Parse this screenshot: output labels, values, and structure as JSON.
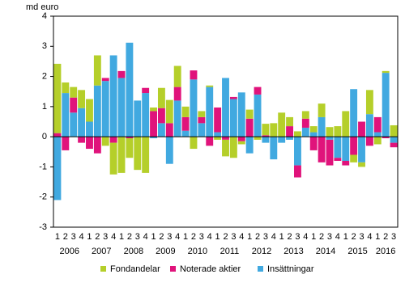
{
  "chart_data": {
    "type": "stacked_bar",
    "y_label": "md euro",
    "categories": [
      "1",
      "2",
      "3",
      "4",
      "1",
      "2",
      "3",
      "4",
      "1",
      "2",
      "3",
      "4",
      "1",
      "2",
      "3",
      "4",
      "1",
      "2",
      "3",
      "4",
      "1",
      "2",
      "3",
      "4",
      "1",
      "2",
      "3",
      "4",
      "1",
      "2",
      "3",
      "4",
      "1",
      "2",
      "3",
      "4",
      "1",
      "2",
      "3",
      "4",
      "1",
      "2",
      "3"
    ],
    "year_labels": [
      "2006",
      "2007",
      "2008",
      "2009",
      "2010",
      "2011",
      "2012",
      "2013",
      "2014",
      "2015",
      "2016"
    ],
    "series": [
      {
        "name": "Insättningar",
        "color": "#41a9e0",
        "values": [
          -2.1,
          1.45,
          0.8,
          0.95,
          0.5,
          1.7,
          1.85,
          2.7,
          1.95,
          3.12,
          1.2,
          1.45,
          -0.05,
          0.45,
          -0.9,
          1.2,
          0.2,
          1.9,
          0.45,
          1.65,
          0.15,
          1.95,
          1.25,
          1.47,
          -0.55,
          1.4,
          -0.2,
          -0.75,
          -0.2,
          -0.1,
          -0.95,
          0.3,
          0.15,
          0.65,
          -0.1,
          -0.7,
          -0.8,
          1.58,
          -0.85,
          0.75,
          0.15,
          2.12,
          -0.2
        ]
      },
      {
        "name": "Noterade aktier",
        "color": "#e0137b",
        "values": [
          0.12,
          -0.45,
          0.5,
          -0.2,
          -0.4,
          -0.55,
          0.1,
          -0.2,
          0.23,
          -0.05,
          0,
          0.17,
          0.85,
          0.5,
          0.45,
          0.45,
          0.45,
          0.3,
          0.2,
          -0.3,
          0.82,
          -0.1,
          0.07,
          -0.15,
          0.6,
          0.25,
          0.05,
          0,
          0,
          0.35,
          -0.4,
          0.3,
          -0.45,
          -0.85,
          -0.85,
          -0.1,
          -0.15,
          -0.6,
          0.5,
          -0.3,
          0.5,
          -0.05,
          -0.15
        ]
      },
      {
        "name": "Fondandelar",
        "color": "#b5cf2a",
        "values": [
          2.3,
          0.35,
          0.35,
          0.6,
          0.75,
          1.0,
          -0.3,
          -1.05,
          -1.2,
          -0.65,
          -1.1,
          -1.2,
          0.12,
          0.67,
          0.77,
          0.7,
          0.35,
          -0.4,
          0.2,
          0.05,
          -0.1,
          -0.55,
          -0.7,
          -0.1,
          0.3,
          -0.1,
          0.38,
          0.45,
          0.8,
          0.3,
          0.18,
          0.25,
          0.2,
          0.45,
          0.32,
          0.35,
          0.85,
          -0.25,
          -0.15,
          0.8,
          -0.25,
          0.06,
          0.38
        ]
      }
    ],
    "ylim": [
      -3,
      4
    ],
    "yticks": [
      -3,
      -2,
      -1,
      0,
      1,
      2,
      3,
      4
    ],
    "legend": "bottom"
  }
}
